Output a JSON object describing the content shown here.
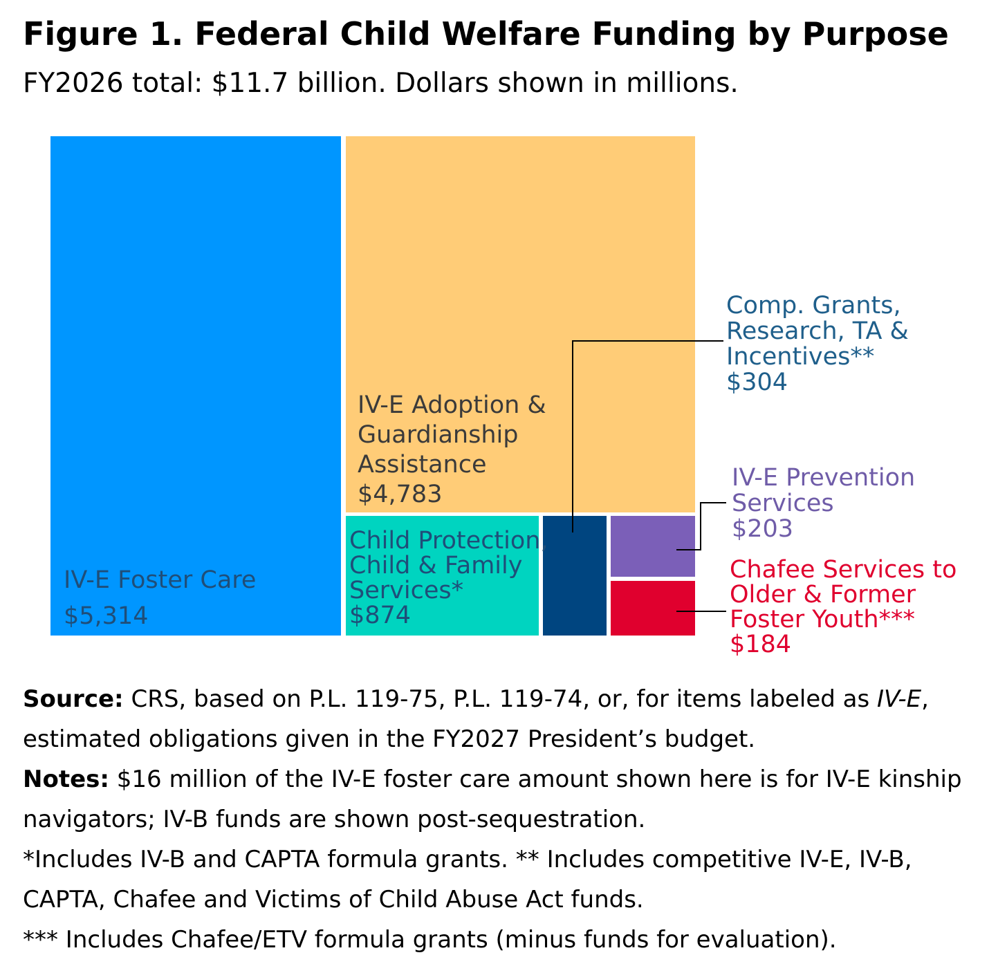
{
  "chart_data": {
    "type": "treemap",
    "title": "Figure 1. Federal Child Welfare Funding by Purpose",
    "subtitle": "FY2026 total: $11.7 billion. Dollars shown in millions.",
    "items": [
      {
        "name_lines": [
          "IV-E Foster Care"
        ],
        "value": 5314,
        "value_label": "$5,314",
        "color": "#0096FF",
        "label_color": "#1F4E79"
      },
      {
        "name_lines": [
          "IV-E Adoption &",
          "Guardianship",
          "Assistance"
        ],
        "value": 4783,
        "value_label": "$4,783",
        "color": "#FFCC77",
        "label_color": "#3A3A3A"
      },
      {
        "name_lines": [
          "Child Protection,",
          "Child & Family",
          "Services*"
        ],
        "value": 874,
        "value_label": "$874",
        "color": "#00D4C0",
        "label_color": "#1F4E79"
      },
      {
        "name_lines": [
          "Comp. Grants,",
          "Research, TA &",
          "Incentives**"
        ],
        "value": 304,
        "value_label": "$304",
        "color": "#004580",
        "label_color": "#1F5F8B"
      },
      {
        "name_lines": [
          "IV-E Prevention",
          "Services"
        ],
        "value": 203,
        "value_label": "$203",
        "color": "#7B5FB8",
        "label_color": "#6F5CA8"
      },
      {
        "name_lines": [
          "Chafee Services to",
          "Older & Former",
          "Foster Youth***"
        ],
        "value": 184,
        "value_label": "$184",
        "color": "#E0002E",
        "label_color": "#E0002E"
      }
    ]
  },
  "source_label": "Source:",
  "source_text_1": " CRS, based on P.L. 119-75, P.L. 119-74, or, for items labeled as ",
  "source_italic": "IV-E",
  "source_text_2": ", estimated obligations given in the FY2027 President’s budget.",
  "notes_label": "Notes:",
  "notes_text": " $16 million of the IV-E foster care amount shown here is for IV-E kinship navigators; IV-B funds are shown post-sequestration.",
  "footnote_1": "*Includes IV-B and CAPTA formula grants. ** Includes competitive IV-E, IV-B, CAPTA, Chafee and Victims of Child Abuse Act funds.",
  "footnote_2": "*** Includes Chafee/ETV formula grants (minus funds for evaluation)."
}
